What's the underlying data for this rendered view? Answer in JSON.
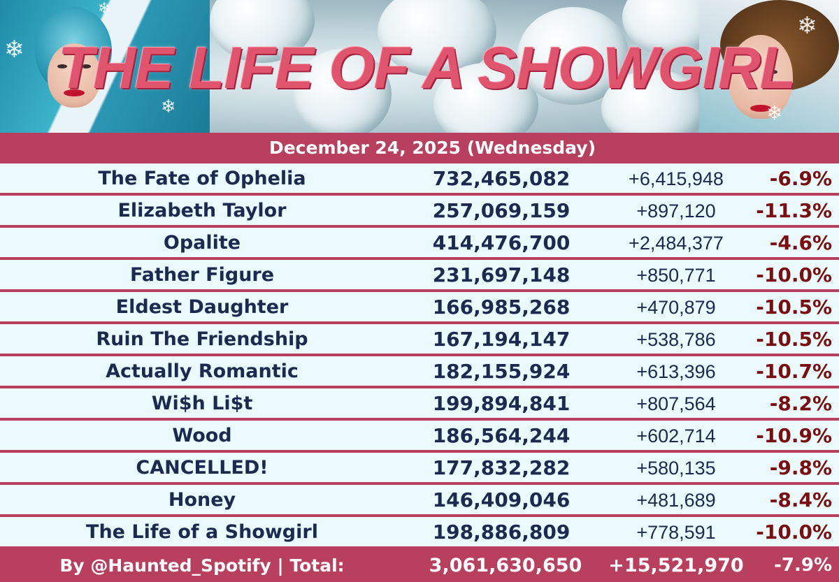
{
  "header": {
    "title": "THE LIFE OF A SHOWGIRL",
    "date": "December 24, 2025 (Wednesday)"
  },
  "colors": {
    "accent": "#b8405e",
    "row_background": "#eafafd",
    "text": "#1d2a4f",
    "change_negative": "#7a0f12"
  },
  "rows": [
    {
      "song": "The Fate of Ophelia",
      "total": "732,465,082",
      "daily": "+6,415,948",
      "change": "-6.9%"
    },
    {
      "song": "Elizabeth Taylor",
      "total": "257,069,159",
      "daily": "+897,120",
      "change": "-11.3%"
    },
    {
      "song": "Opalite",
      "total": "414,476,700",
      "daily": "+2,484,377",
      "change": "-4.6%"
    },
    {
      "song": "Father Figure",
      "total": "231,697,148",
      "daily": "+850,771",
      "change": "-10.0%"
    },
    {
      "song": "Eldest Daughter",
      "total": "166,985,268",
      "daily": "+470,879",
      "change": "-10.5%"
    },
    {
      "song": "Ruin The Friendship",
      "total": "167,194,147",
      "daily": "+538,786",
      "change": "-10.5%"
    },
    {
      "song": "Actually Romantic",
      "total": "182,155,924",
      "daily": "+613,396",
      "change": "-10.7%"
    },
    {
      "song": "Wi$h Li$t",
      "total": "199,894,841",
      "daily": "+807,564",
      "change": "-8.2%"
    },
    {
      "song": "Wood",
      "total": "186,564,244",
      "daily": "+602,714",
      "change": "-10.9%"
    },
    {
      "song": "CANCELLED!",
      "total": "177,832,282",
      "daily": "+580,135",
      "change": "-9.8%"
    },
    {
      "song": "Honey",
      "total": "146,409,046",
      "daily": "+481,689",
      "change": "-8.4%"
    },
    {
      "song": "The Life of a Showgirl",
      "total": "198,886,809",
      "daily": "+778,591",
      "change": "-10.0%"
    }
  ],
  "footer": {
    "credit": "By @Haunted_Spotify | Total:",
    "total": "3,061,630,650",
    "daily": "+15,521,970",
    "change": "-7.9%"
  }
}
